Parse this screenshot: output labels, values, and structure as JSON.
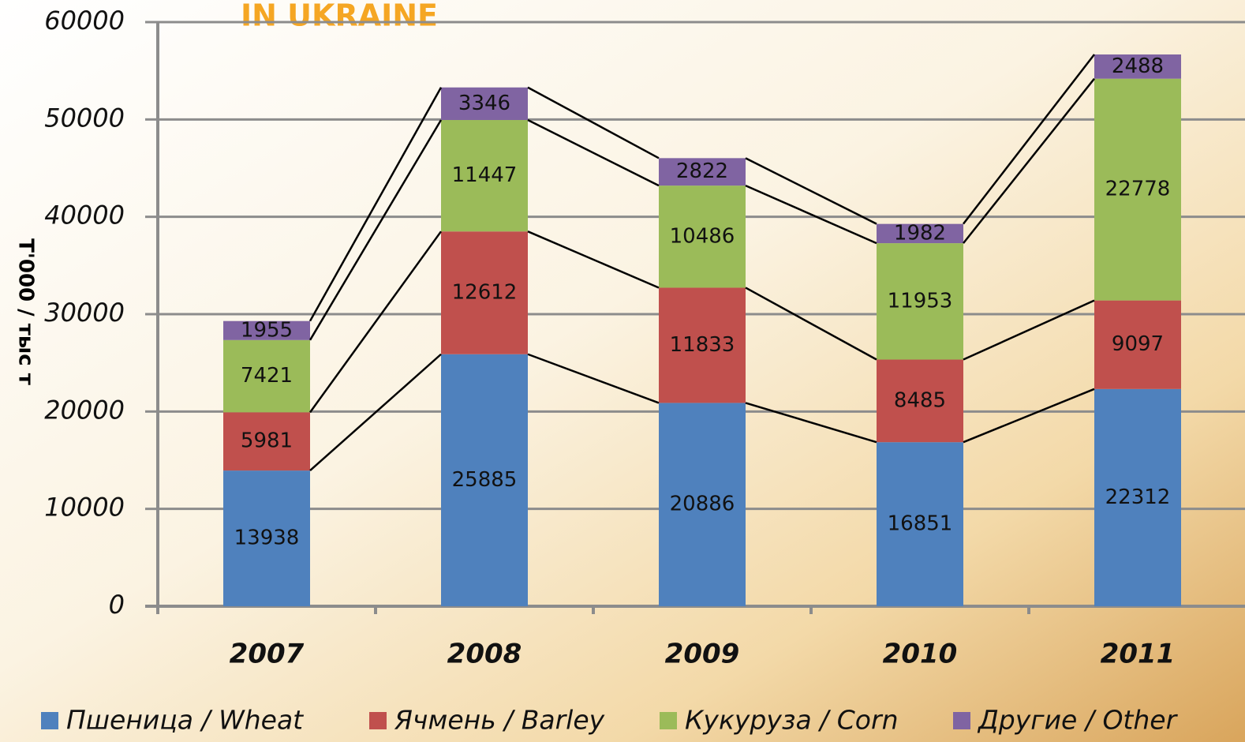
{
  "chart_data": {
    "type": "stacked_bar",
    "title": "IN UKRAINE",
    "y_label": "Т'000 / тыс т",
    "categories": [
      "2007",
      "2008",
      "2009",
      "2010",
      "2011"
    ],
    "series": [
      {
        "name": "Пшеница / Wheat",
        "color": "#4f81bd",
        "values": [
          13938,
          25885,
          20886,
          16851,
          22312
        ]
      },
      {
        "name": "Ячмень / Barley",
        "color": "#c0504d",
        "values": [
          5981,
          12612,
          11833,
          8485,
          9097
        ]
      },
      {
        "name": "Кукуруза / Corn",
        "color": "#9bbb59",
        "values": [
          7421,
          11447,
          10486,
          11953,
          22778
        ]
      },
      {
        "name": "Другие / Other",
        "color": "#8064a2",
        "values": [
          1955,
          3346,
          2822,
          1982,
          2488
        ]
      }
    ],
    "ylim": [
      0,
      60000
    ],
    "yticks": [
      0,
      10000,
      20000,
      30000,
      40000,
      50000,
      60000
    ],
    "grid": true
  }
}
